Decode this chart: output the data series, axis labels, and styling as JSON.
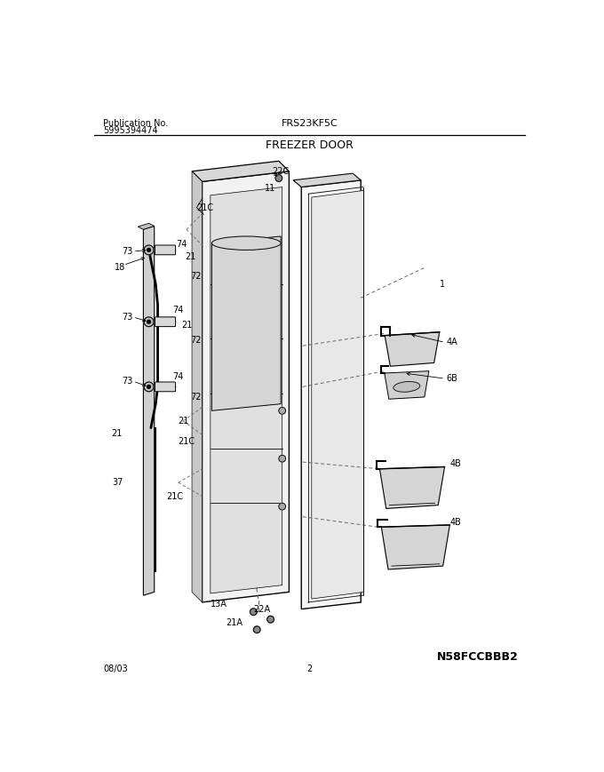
{
  "title_model": "FRS23KF5C",
  "title_section": "FREEZER DOOR",
  "pub_label": "Publication No.",
  "pub_number": "5995394474",
  "date": "08/03",
  "page": "2",
  "diagram_id": "N58FCCBBB2",
  "bg_color": "#ffffff",
  "line_color": "#000000",
  "gray_light": "#e8e8e8",
  "gray_mid": "#d0d0d0",
  "gray_dark": "#b0b0b0",
  "dashed_color": "#666666",
  "figsize": [
    6.8,
    8.69
  ],
  "dpi": 100
}
